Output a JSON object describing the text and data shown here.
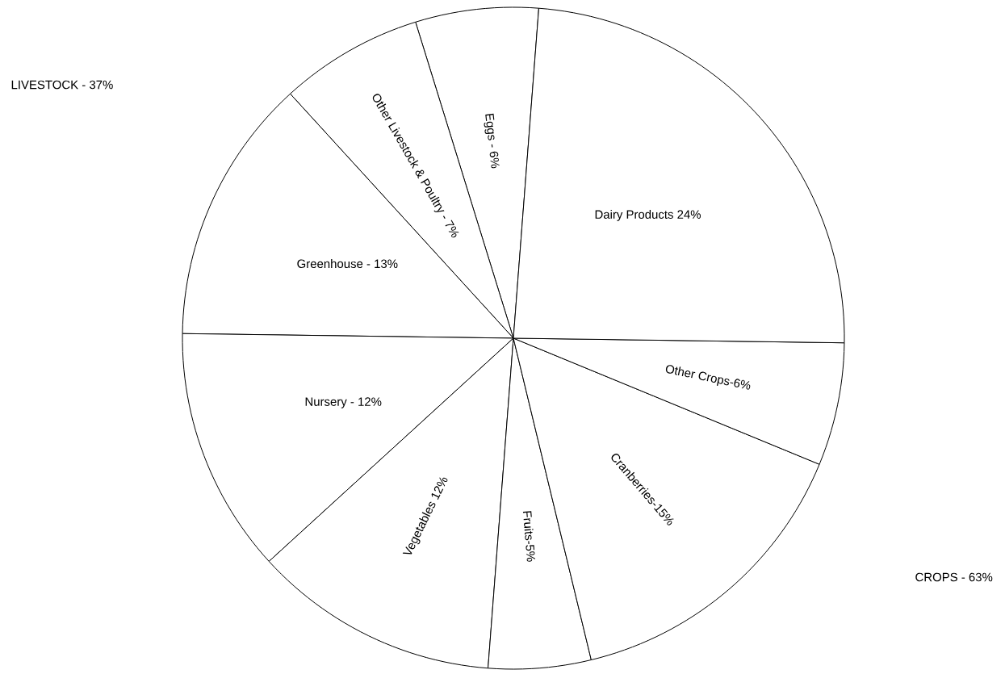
{
  "chart_data": {
    "type": "pie",
    "categories": [
      "Eggs - 6%",
      "Other Livestock & Poultry - 7%",
      "Greenhouse - 13%",
      "Nursery - 12%",
      "Vegetables 12%",
      "Fruits-5%",
      "Cranberries-15%",
      "Other Crops-6%",
      "Dairy Products 24%"
    ],
    "values": [
      6,
      7,
      13,
      12,
      12,
      5,
      15,
      6,
      24
    ],
    "colors": [
      "#ffffff",
      "#ffffff",
      "#ffffff",
      "#ffffff",
      "#ffffff",
      "#ffffff",
      "#ffffff",
      "#ffffff",
      "#ffffff"
    ],
    "annotations": [
      "LIVESTOCK - 37%",
      "CROPS - 63%"
    ]
  }
}
